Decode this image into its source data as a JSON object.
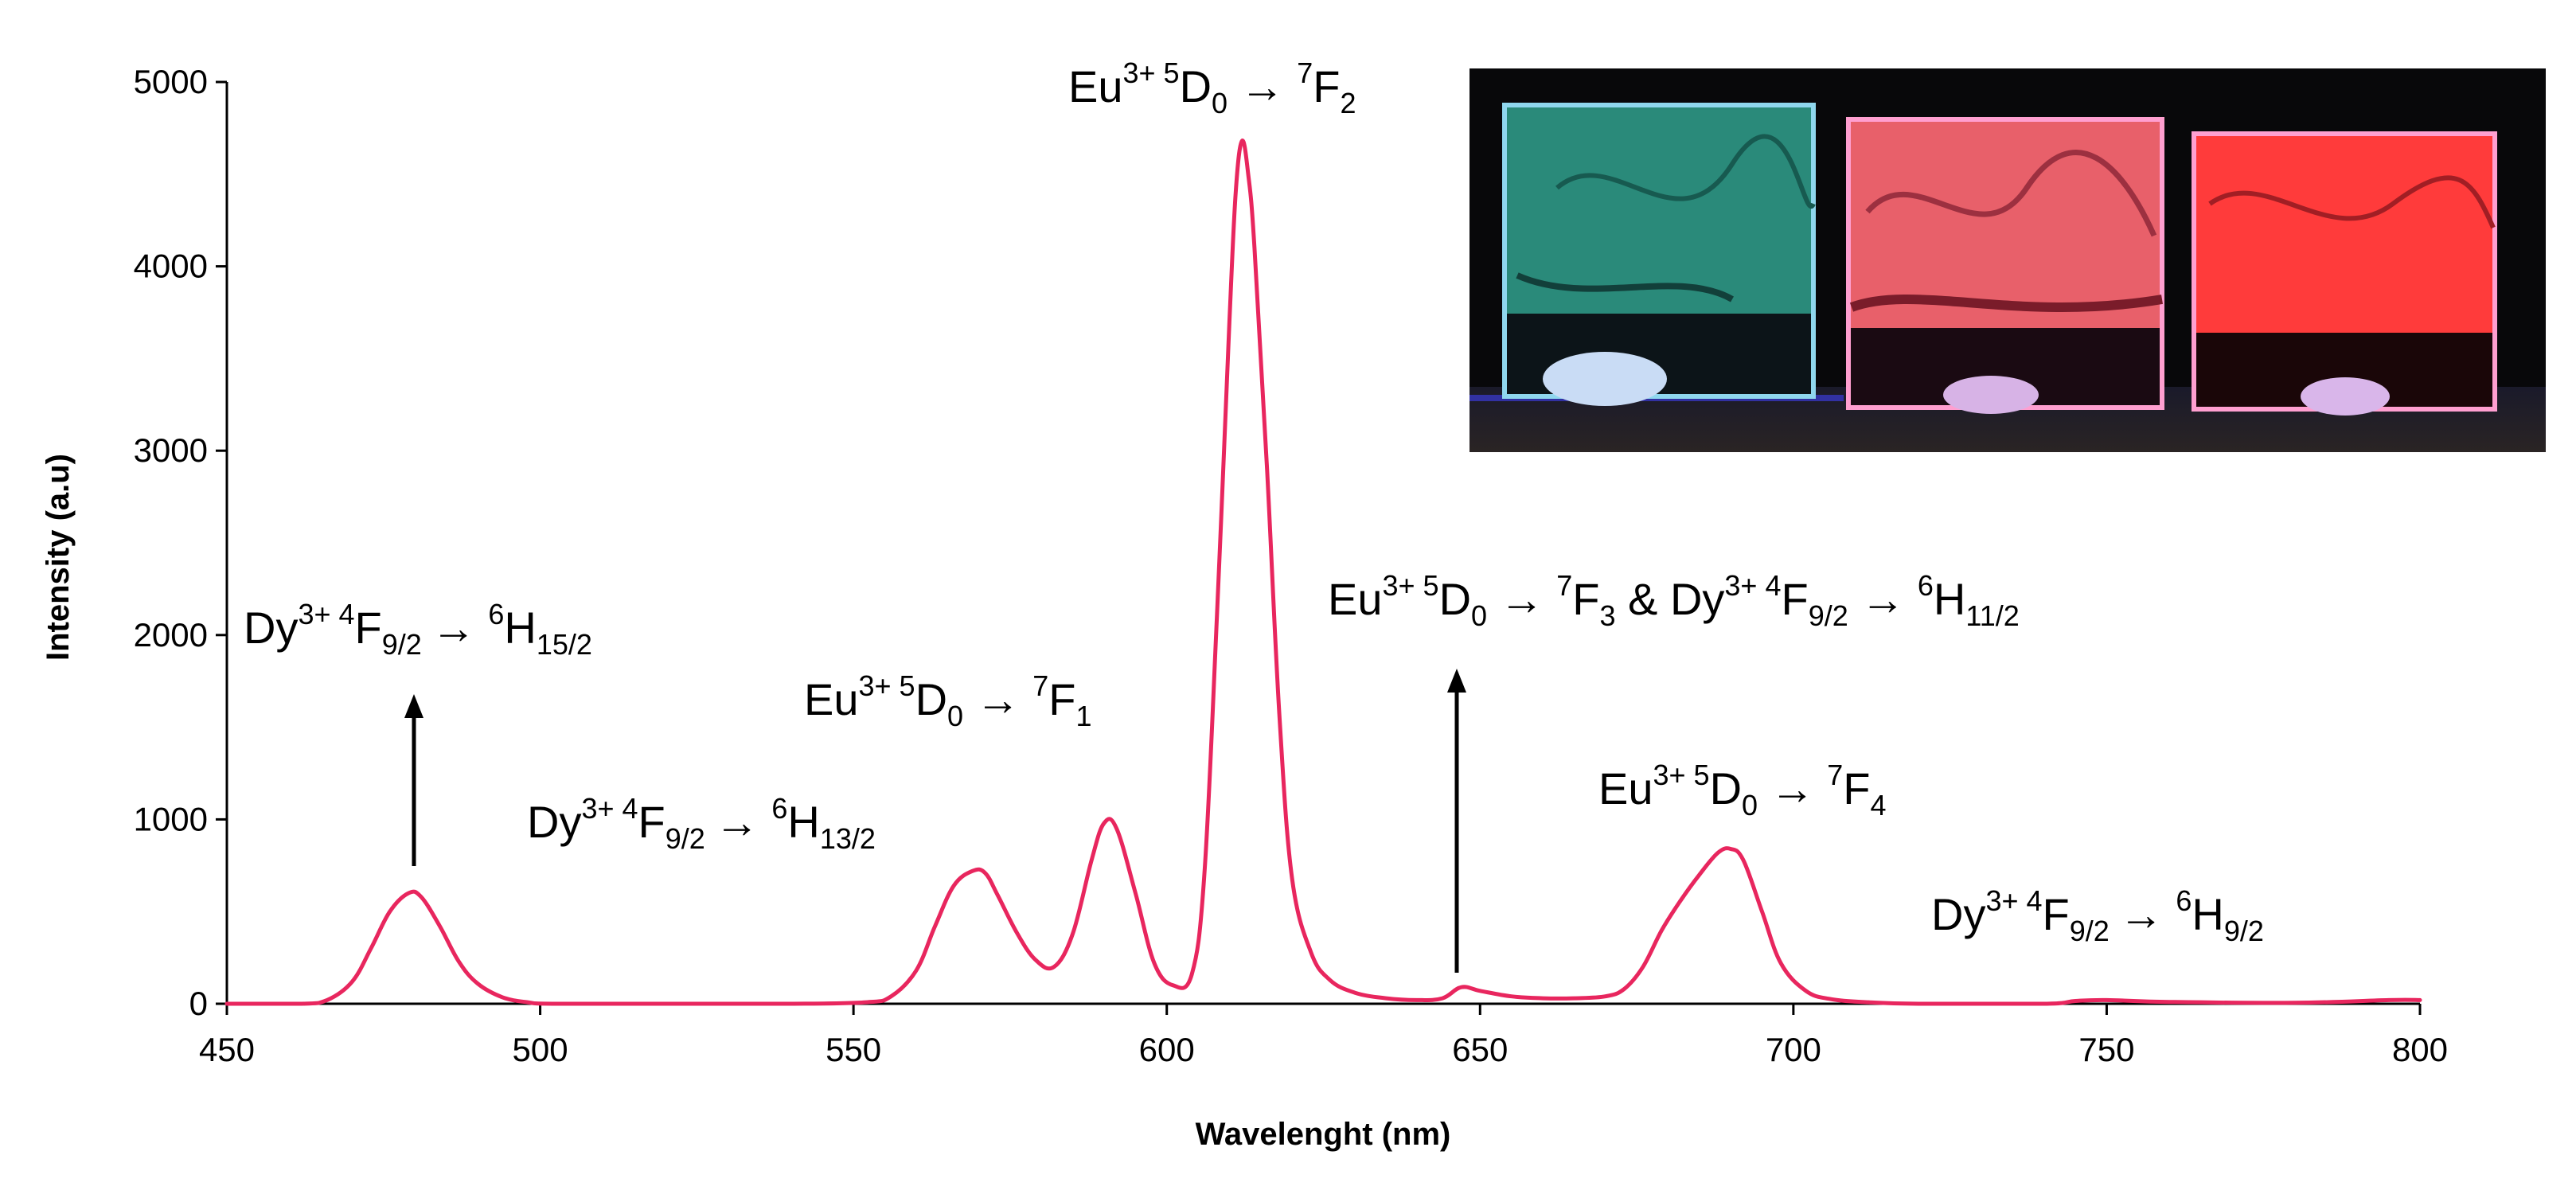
{
  "chart_data": {
    "type": "line",
    "xlabel": "Wavelenght (nm)",
    "ylabel": "Intensity (a.u)",
    "xlim": [
      450,
      800
    ],
    "ylim": [
      0,
      5000
    ],
    "x_ticks": [
      "450",
      "500",
      "550",
      "600",
      "650",
      "700",
      "750",
      "800"
    ],
    "y_ticks": [
      "0",
      "1000",
      "2000",
      "3000",
      "4000",
      "5000"
    ],
    "grid": false,
    "line_color": "#e8265e",
    "series": [
      {
        "x": [
          450,
          462,
          466,
          470,
          473,
          476,
          479,
          481,
          484,
          487,
          490,
          494,
          498,
          502,
          520,
          540,
          552,
          556,
          560,
          563,
          566,
          569,
          571,
          573,
          576,
          579,
          582,
          585,
          588,
          590,
          592,
          595,
          598,
          601,
          604,
          606,
          608,
          610,
          611,
          612,
          613,
          614,
          616,
          618,
          620,
          623,
          626,
          630,
          635,
          640,
          644,
          647,
          650,
          655,
          660,
          665,
          670,
          673,
          676,
          679,
          682,
          685,
          688,
          690,
          692,
          695,
          698,
          702,
          706,
          712,
          720,
          740,
          745,
          750,
          760,
          780,
          795,
          800
        ],
        "y": [
          0,
          0,
          20,
          120,
          300,
          500,
          600,
          580,
          420,
          230,
          110,
          35,
          8,
          0,
          0,
          0,
          8,
          40,
          180,
          420,
          640,
          720,
          710,
          590,
          390,
          240,
          200,
          380,
          780,
          980,
          950,
          600,
          220,
          100,
          160,
          700,
          2100,
          3700,
          4400,
          4680,
          4500,
          4100,
          2900,
          1550,
          680,
          280,
          130,
          60,
          30,
          20,
          30,
          90,
          70,
          40,
          30,
          30,
          40,
          80,
          200,
          400,
          560,
          700,
          820,
          840,
          780,
          500,
          220,
          70,
          25,
          8,
          0,
          0,
          15,
          20,
          10,
          5,
          20,
          20
        ]
      }
    ],
    "annotations": {
      "a1": {
        "ion": "Dy",
        "ion_sup": "3+ 4",
        "level": "F",
        "level_sub": "9/2",
        "arrow": "→ ",
        "t_sup": "6",
        "t": "H",
        "t_sub": "15/2"
      },
      "a2": {
        "ion": "Dy",
        "ion_sup": "3+ 4",
        "level": "F",
        "level_sub": "9/2",
        "arrow": "→ ",
        "t_sup": "6",
        "t": "H",
        "t_sub": "13/2"
      },
      "a3": {
        "ion": "Eu",
        "ion_sup": "3+ 5",
        "level": "D",
        "level_sub": "0",
        "arrow": " → ",
        "t_sup": "7",
        "t": "F",
        "t_sub": "1"
      },
      "a4": {
        "ion": "Eu",
        "ion_sup": "3+ 5",
        "level": "D",
        "level_sub": "0",
        "arrow": " → ",
        "t_sup": "7",
        "t": "F",
        "t_sub": "2"
      },
      "a5": {
        "ion": "Eu",
        "ion_sup": "3+ 5",
        "level": "D",
        "level_sub": "0",
        "arrow": " → ",
        "t_sup": "7",
        "t": "F",
        "t_sub": "3",
        "amp": " & ",
        "ion2": "Dy",
        "ion2_sup": "3+ 4",
        "level2": "F",
        "level2_sub": "9/2",
        "arrow2": " → ",
        "t2_sup": "6",
        "t2": "H",
        "t2_sub": "11/2"
      },
      "a6": {
        "ion": "Eu",
        "ion_sup": "3+ 5",
        "level": "D",
        "level_sub": "0",
        "arrow": " → ",
        "t_sup": "7",
        "t": "F",
        "t_sub": "4"
      },
      "a7": {
        "ion": "Dy",
        "ion_sup": "3+ 4",
        "level": "F",
        "level_sub": "9/2",
        "arrow": "→ ",
        "t_sup": "6",
        "t": "H",
        "t_sub": "9/2"
      }
    }
  },
  "inset_photo": {
    "colors": {
      "panel_left": "#2a8a7a",
      "panel_middle": "#e8606a",
      "panel_right": "#ff3b3b",
      "background": "#08080a"
    }
  }
}
